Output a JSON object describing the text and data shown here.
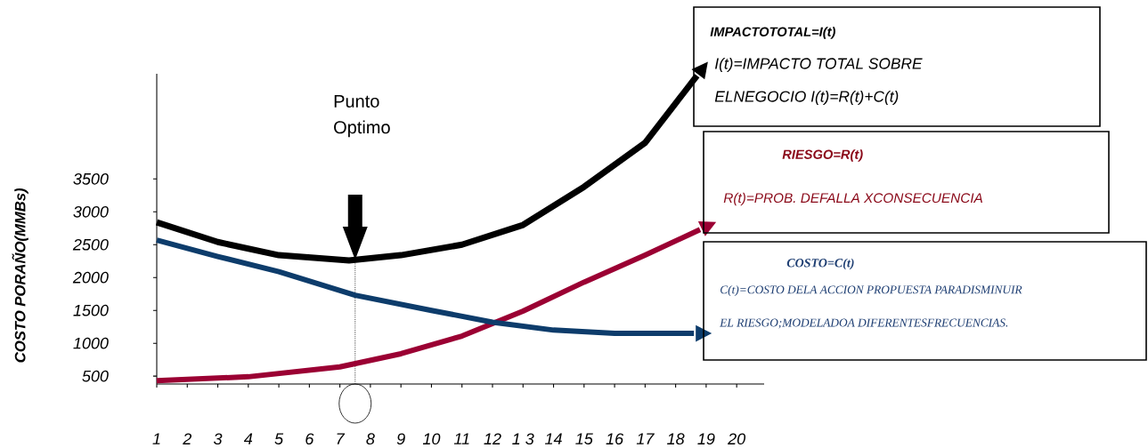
{
  "chart_data": {
    "type": "line",
    "ylabel": "COSTO PORAÑO(MMBs)",
    "xlim": [
      1,
      20.9
    ],
    "ylim": [
      380,
      5100
    ],
    "xticks": [
      1,
      2,
      3,
      4,
      5,
      6,
      7,
      8,
      9,
      10,
      11,
      12,
      {
        "value": 13,
        "label": "1 3"
      },
      14,
      15,
      16,
      17,
      18,
      19,
      20
    ],
    "yticks": [
      500,
      1000,
      1500,
      2000,
      2500,
      3000,
      3500
    ],
    "series": [
      {
        "color": "#000000",
        "x": [
          1,
          3,
          5,
          7.3,
          9,
          11,
          13,
          15,
          17,
          18.7
        ],
        "values": [
          2840,
          2540,
          2340,
          2260,
          2340,
          2500,
          2800,
          3380,
          4050,
          5070
        ]
      },
      {
        "color": "#9b0033",
        "x": [
          1,
          4,
          7,
          9,
          11,
          13,
          15,
          17,
          18.8
        ],
        "values": [
          430,
          490,
          640,
          840,
          1110,
          1490,
          1930,
          2340,
          2730
        ]
      },
      {
        "color": "#0d3c6b",
        "x": [
          1,
          3,
          5,
          7.5,
          10,
          12,
          14,
          16,
          18.6
        ],
        "values": [
          2570,
          2320,
          2090,
          1730,
          1500,
          1320,
          1200,
          1150,
          1150
        ]
      }
    ],
    "ref_lines": [
      {
        "axis": "x",
        "value": 7.5,
        "color": "#4c4c4c",
        "line_style": "dotted"
      }
    ],
    "annotations": [
      "Punto Optimo",
      "IMPACTOTOTAL=I(t)",
      "I(t)=IMPACTO TOTAL SOBRE",
      "ELNEGOCIO I(t)=R(t)+C(t)",
      "RIESGO=R(t)",
      "R(t)=PROB. DEFALLA XCONSECUENCIA",
      "COSTO=C(t)",
      "C(t)=COSTO DELA ACCION PROPUESTA PARADISMINUIR",
      "EL RIESGO;MODELADOA DIFERENTESFRECUENCIAS."
    ]
  }
}
